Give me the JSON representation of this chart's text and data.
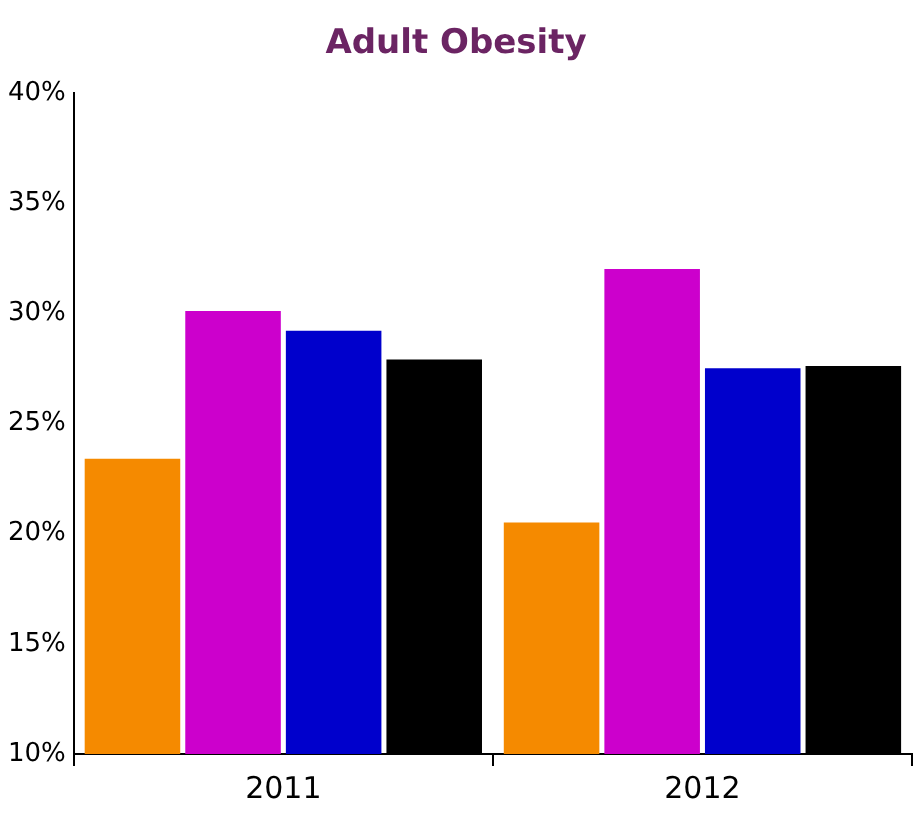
{
  "chart_data": {
    "type": "bar",
    "title": "Adult Obesity",
    "categories": [
      "2011",
      "2012"
    ],
    "series": [
      {
        "color": "#f58a00",
        "values": [
          23.4,
          20.5
        ]
      },
      {
        "color": "#cc00cc",
        "values": [
          30.1,
          32.0
        ]
      },
      {
        "color": "#0000cc",
        "values": [
          29.2,
          27.5
        ]
      },
      {
        "color": "#000000",
        "values": [
          27.9,
          27.6
        ]
      }
    ],
    "ylim": [
      10,
      40
    ],
    "yticks": [
      {
        "value": 10,
        "label": "10%"
      },
      {
        "value": 15,
        "label": "15%"
      },
      {
        "value": 20,
        "label": "20%"
      },
      {
        "value": 25,
        "label": "25%"
      },
      {
        "value": 30,
        "label": "30%"
      },
      {
        "value": 35,
        "label": "35%"
      },
      {
        "value": 40,
        "label": "40%"
      }
    ],
    "grid": false,
    "legend": false
  }
}
